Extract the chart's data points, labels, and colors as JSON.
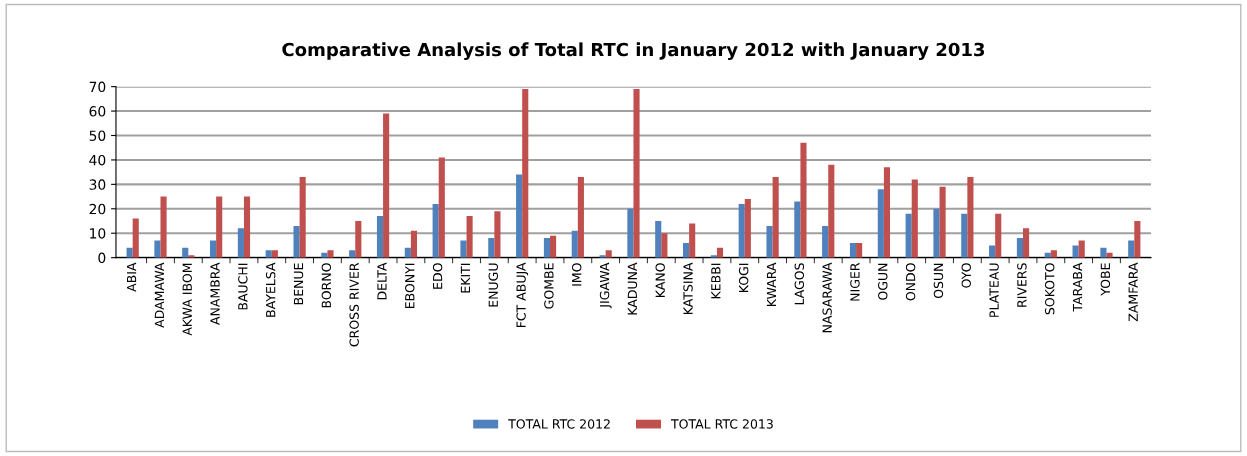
{
  "chart_data": {
    "type": "bar",
    "title": "Comparative Analysis of Total RTC in January 2012 with January 2013",
    "categories": [
      "ABIA",
      "ADAMAWA",
      "AKWA IBOM",
      "ANAMBRA",
      "BAUCHI",
      "BAYELSA",
      "BENUE",
      "BORNO",
      "CROSS RIVER",
      "DELTA",
      "EBONYI",
      "EDO",
      "EKITI",
      "ENUGU",
      "FCT ABUJA",
      "GOMBE",
      "IMO",
      "JIGAWA",
      "KADUNA",
      "KANO",
      "KATSINA",
      "KEBBI",
      "KOGI",
      "KWARA",
      "LAGOS",
      "NASARAWA",
      "NIGER",
      "OGUN",
      "ONDO",
      "OSUN",
      "OYO",
      "PLATEAU",
      "RIVERS",
      "SOKOTO",
      "TARABA",
      "YOBE",
      "ZAMFARA"
    ],
    "series": [
      {
        "name": "TOTAL RTC 2012",
        "color": "#4f81bd",
        "values": [
          4,
          7,
          4,
          7,
          12,
          3,
          13,
          2,
          3,
          17,
          4,
          22,
          7,
          8,
          34,
          8,
          11,
          1,
          20,
          15,
          6,
          1,
          22,
          13,
          23,
          13,
          6,
          28,
          18,
          20,
          18,
          5,
          8,
          2,
          5,
          4,
          7
        ]
      },
      {
        "name": "TOTAL RTC 2013",
        "color": "#c0504d",
        "values": [
          16,
          25,
          1,
          25,
          25,
          3,
          33,
          3,
          15,
          59,
          11,
          41,
          17,
          19,
          69,
          9,
          33,
          3,
          69,
          10,
          14,
          4,
          24,
          33,
          47,
          38,
          6,
          37,
          32,
          29,
          33,
          18,
          12,
          3,
          7,
          2,
          15
        ]
      }
    ],
    "ylim": [
      0,
      70
    ],
    "yticks": [
      0,
      10,
      20,
      30,
      40,
      50,
      60,
      70
    ],
    "grid": "y",
    "legend": "bottom"
  }
}
